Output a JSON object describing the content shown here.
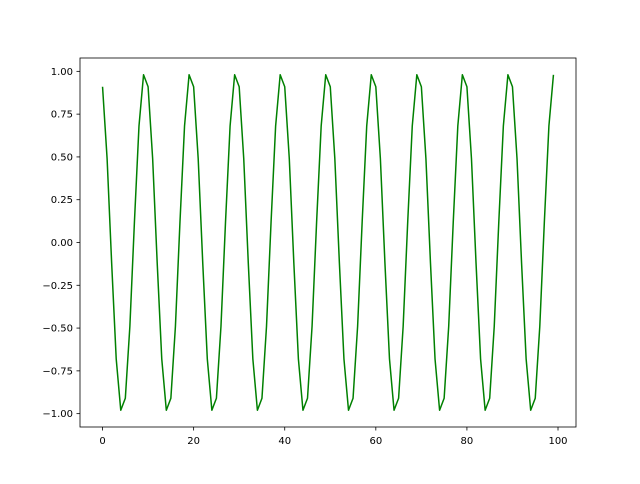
{
  "chart_data": {
    "type": "line",
    "title": "",
    "xlabel": "",
    "ylabel": "",
    "xlim": [
      -4.95,
      103.95
    ],
    "ylim": [
      -1.078,
      1.078
    ],
    "grid": false,
    "x_ticks": [
      0,
      20,
      40,
      60,
      80,
      100
    ],
    "x_tick_labels": [
      "0",
      "20",
      "40",
      "60",
      "80",
      "100"
    ],
    "y_ticks": [
      -1.0,
      -0.75,
      -0.5,
      -0.25,
      0.0,
      0.25,
      0.5,
      0.75,
      1.0
    ],
    "y_tick_labels": [
      "−1.00",
      "−0.75",
      "−0.50",
      "−0.25",
      "0.00",
      "0.25",
      "0.50",
      "0.75",
      "1.00"
    ],
    "series": [
      {
        "color": "#008000",
        "x_start": 0,
        "x_step": 1,
        "values": [
          0.91,
          0.49,
          -0.12,
          -0.68,
          -0.98,
          -0.91,
          -0.49,
          0.12,
          0.68,
          0.98,
          0.91,
          0.49,
          -0.12,
          -0.68,
          -0.98,
          -0.91,
          -0.49,
          0.12,
          0.68,
          0.98,
          0.91,
          0.49,
          -0.12,
          -0.68,
          -0.98,
          -0.91,
          -0.49,
          0.12,
          0.68,
          0.98,
          0.91,
          0.49,
          -0.12,
          -0.68,
          -0.98,
          -0.91,
          -0.49,
          0.12,
          0.68,
          0.98,
          0.91,
          0.49,
          -0.12,
          -0.68,
          -0.98,
          -0.91,
          -0.49,
          0.12,
          0.68,
          0.98,
          0.91,
          0.49,
          -0.12,
          -0.68,
          -0.98,
          -0.91,
          -0.49,
          0.12,
          0.68,
          0.98,
          0.91,
          0.49,
          -0.12,
          -0.68,
          -0.98,
          -0.91,
          -0.49,
          0.12,
          0.68,
          0.98,
          0.91,
          0.49,
          -0.12,
          -0.68,
          -0.98,
          -0.91,
          -0.49,
          0.12,
          0.68,
          0.98,
          0.91,
          0.49,
          -0.12,
          -0.68,
          -0.98,
          -0.91,
          -0.49,
          0.12,
          0.68,
          0.98,
          0.91,
          0.49,
          -0.12,
          -0.68,
          -0.98,
          -0.91,
          -0.49,
          0.12,
          0.68,
          0.98
        ]
      }
    ]
  }
}
